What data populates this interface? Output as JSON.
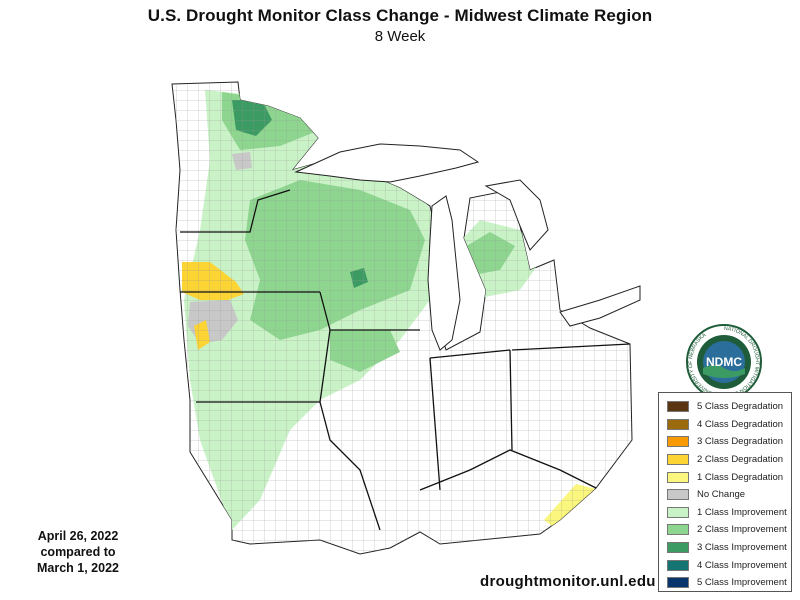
{
  "title": "U.S. Drought Monitor Class Change - Midwest Climate Region",
  "subtitle": "8 Week",
  "dates": {
    "line1": "April 26, 2022",
    "line2": "compared to",
    "line3": "March 1, 2022"
  },
  "website": "droughtmonitor.unl.edu",
  "logo": {
    "acronym": "NDMC",
    "ring_text": "NATIONAL DROUGHT MITIGATION CENTER • UNIVERSITY OF NEBRASKA",
    "colors": {
      "ring": "#1e5c3a",
      "center": "#2c6e9b"
    }
  },
  "legend": [
    {
      "label": "5 Class Degradation",
      "color": "#5a3612"
    },
    {
      "label": "4 Class Degradation",
      "color": "#9b6a0c"
    },
    {
      "label": "3 Class Degradation",
      "color": "#f79a06"
    },
    {
      "label": "2 Class Degradation",
      "color": "#fcd433"
    },
    {
      "label": "1 Class Degradation",
      "color": "#fbf77e"
    },
    {
      "label": "No Change",
      "color": "#c8c8c8"
    },
    {
      "label": "1 Class Improvement",
      "color": "#c9f2c7"
    },
    {
      "label": "2 Class Improvement",
      "color": "#8ed58f"
    },
    {
      "label": "3 Class Improvement",
      "color": "#3c9b63"
    },
    {
      "label": "4 Class Improvement",
      "color": "#137472"
    },
    {
      "label": "5 Class Improvement",
      "color": "#07346b"
    }
  ]
}
